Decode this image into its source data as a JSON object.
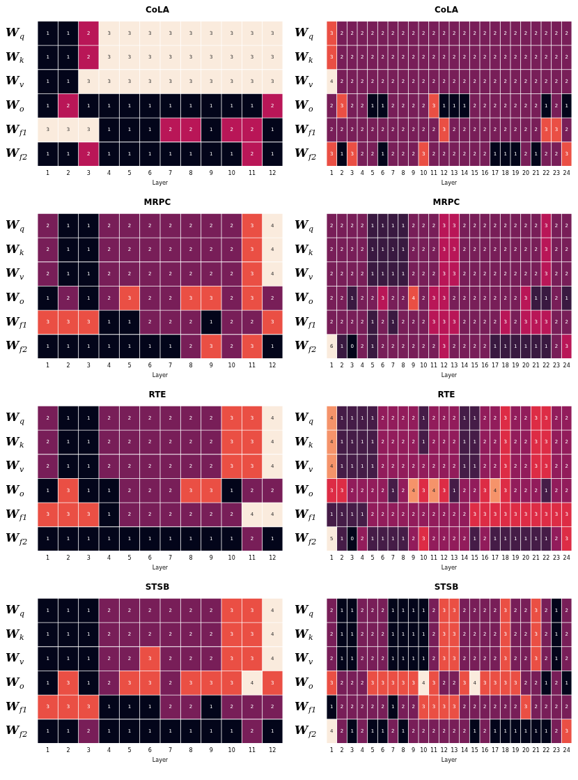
{
  "chart_data": [
    {
      "type": "heatmap",
      "title": "CoLA",
      "xlabel": "Layer",
      "data_labels": true,
      "categories": [
        "1",
        "2",
        "3",
        "4",
        "5",
        "6",
        "7",
        "8",
        "9",
        "10",
        "11",
        "12"
      ],
      "y_categories": [
        "W$_{q}$",
        "W$_{k}$",
        "W$_{v}$",
        "W$_{o}$",
        "W$_{f1}$",
        "W$_{f2}$"
      ],
      "cells": [
        [
          1,
          1,
          2,
          3,
          3,
          3,
          3,
          3,
          3,
          3,
          3,
          3
        ],
        [
          1,
          1,
          2,
          3,
          3,
          3,
          3,
          3,
          3,
          3,
          3,
          3
        ],
        [
          1,
          1,
          3,
          3,
          3,
          3,
          3,
          3,
          3,
          3,
          3,
          3
        ],
        [
          1,
          2,
          1,
          1,
          1,
          1,
          1,
          1,
          1,
          1,
          1,
          2
        ],
        [
          3,
          3,
          3,
          1,
          1,
          1,
          2,
          2,
          1,
          2,
          2,
          1
        ],
        [
          1,
          1,
          2,
          1,
          1,
          1,
          1,
          1,
          1,
          1,
          2,
          1
        ]
      ]
    },
    {
      "type": "heatmap",
      "title": "CoLA",
      "xlabel": "Layer",
      "data_labels": true,
      "categories": [
        "1",
        "2",
        "3",
        "4",
        "5",
        "6",
        "7",
        "8",
        "9",
        "10",
        "11",
        "12",
        "13",
        "14",
        "15",
        "16",
        "17",
        "18",
        "19",
        "20",
        "21",
        "22",
        "23",
        "24"
      ],
      "y_categories": [
        "W$_{q}$",
        "W$_{k}$",
        "W$_{v}$",
        "W$_{o}$",
        "W$_{f1}$",
        "W$_{f2}$"
      ],
      "cells": [
        [
          3,
          2,
          2,
          2,
          2,
          2,
          2,
          2,
          2,
          2,
          2,
          2,
          2,
          2,
          2,
          2,
          2,
          2,
          2,
          2,
          2,
          2,
          2,
          2
        ],
        [
          3,
          2,
          2,
          2,
          2,
          2,
          2,
          2,
          2,
          2,
          2,
          2,
          2,
          2,
          2,
          2,
          2,
          2,
          2,
          2,
          2,
          2,
          2,
          2
        ],
        [
          4,
          2,
          2,
          2,
          2,
          2,
          2,
          2,
          2,
          2,
          2,
          2,
          2,
          2,
          2,
          2,
          2,
          2,
          2,
          2,
          2,
          2,
          2,
          2
        ],
        [
          2,
          3,
          2,
          2,
          1,
          1,
          2,
          2,
          2,
          2,
          3,
          1,
          1,
          1,
          2,
          2,
          2,
          2,
          2,
          2,
          2,
          1,
          2,
          1
        ],
        [
          2,
          2,
          2,
          2,
          2,
          2,
          2,
          2,
          2,
          2,
          2,
          3,
          2,
          2,
          2,
          2,
          2,
          2,
          2,
          2,
          2,
          3,
          3,
          2
        ],
        [
          3,
          1,
          3,
          2,
          2,
          1,
          2,
          2,
          2,
          3,
          2,
          2,
          2,
          2,
          2,
          2,
          1,
          1,
          1,
          2,
          1,
          2,
          2,
          3
        ]
      ]
    },
    {
      "type": "heatmap",
      "title": "MRPC",
      "xlabel": "Layer",
      "data_labels": true,
      "categories": [
        "1",
        "2",
        "3",
        "4",
        "5",
        "6",
        "7",
        "8",
        "9",
        "10",
        "11",
        "12"
      ],
      "y_categories": [
        "W$_{q}$",
        "W$_{k}$",
        "W$_{v}$",
        "W$_{o}$",
        "W$_{f1}$",
        "W$_{f2}$"
      ],
      "cells": [
        [
          2,
          1,
          1,
          2,
          2,
          2,
          2,
          2,
          2,
          2,
          3,
          4
        ],
        [
          2,
          1,
          1,
          2,
          2,
          2,
          2,
          2,
          2,
          2,
          3,
          4
        ],
        [
          2,
          1,
          1,
          2,
          2,
          2,
          2,
          2,
          2,
          2,
          3,
          4
        ],
        [
          1,
          2,
          1,
          2,
          3,
          2,
          2,
          3,
          3,
          2,
          3,
          2
        ],
        [
          3,
          3,
          3,
          1,
          1,
          2,
          2,
          2,
          1,
          2,
          2,
          3
        ],
        [
          1,
          1,
          1,
          1,
          1,
          1,
          1,
          2,
          3,
          2,
          3,
          1
        ]
      ]
    },
    {
      "type": "heatmap",
      "title": "MRPC",
      "xlabel": "Layer",
      "data_labels": true,
      "categories": [
        "1",
        "2",
        "3",
        "4",
        "5",
        "6",
        "7",
        "8",
        "9",
        "10",
        "11",
        "12",
        "13",
        "14",
        "15",
        "16",
        "17",
        "18",
        "19",
        "20",
        "21",
        "22",
        "23",
        "24"
      ],
      "y_categories": [
        "W$_{q}$",
        "W$_{k}$",
        "W$_{v}$",
        "W$_{o}$",
        "W$_{f1}$",
        "W$_{f2}$"
      ],
      "cells": [
        [
          2,
          2,
          2,
          2,
          1,
          1,
          1,
          1,
          2,
          2,
          2,
          3,
          3,
          2,
          2,
          2,
          2,
          2,
          2,
          2,
          2,
          3,
          2,
          2
        ],
        [
          2,
          2,
          2,
          2,
          1,
          1,
          1,
          1,
          2,
          2,
          2,
          3,
          3,
          2,
          2,
          2,
          2,
          2,
          2,
          2,
          2,
          3,
          2,
          2
        ],
        [
          2,
          2,
          2,
          2,
          1,
          1,
          1,
          1,
          2,
          2,
          2,
          3,
          3,
          2,
          2,
          2,
          2,
          2,
          2,
          2,
          2,
          3,
          2,
          2
        ],
        [
          2,
          2,
          1,
          2,
          2,
          3,
          2,
          2,
          4,
          2,
          3,
          3,
          2,
          2,
          2,
          2,
          2,
          2,
          2,
          3,
          1,
          1,
          2,
          1
        ],
        [
          2,
          2,
          2,
          2,
          1,
          2,
          1,
          2,
          2,
          2,
          3,
          3,
          3,
          2,
          2,
          2,
          2,
          3,
          2,
          3,
          3,
          3,
          2,
          2
        ],
        [
          6,
          1,
          0,
          2,
          1,
          2,
          2,
          2,
          2,
          2,
          2,
          3,
          2,
          2,
          2,
          2,
          1,
          1,
          1,
          1,
          1,
          1,
          2,
          3
        ]
      ]
    },
    {
      "type": "heatmap",
      "title": "RTE",
      "xlabel": "Layer",
      "data_labels": true,
      "categories": [
        "1",
        "2",
        "3",
        "4",
        "5",
        "6",
        "7",
        "8",
        "9",
        "10",
        "11",
        "12"
      ],
      "y_categories": [
        "W$_{q}$",
        "W$_{k}$",
        "W$_{v}$",
        "W$_{o}$",
        "W$_{f1}$",
        "W$_{f2}$"
      ],
      "cells": [
        [
          2,
          1,
          1,
          2,
          2,
          2,
          2,
          2,
          2,
          3,
          3,
          4
        ],
        [
          2,
          1,
          1,
          2,
          2,
          2,
          2,
          2,
          2,
          3,
          3,
          4
        ],
        [
          2,
          1,
          1,
          2,
          2,
          2,
          2,
          2,
          2,
          3,
          3,
          4
        ],
        [
          1,
          3,
          1,
          1,
          2,
          2,
          2,
          3,
          3,
          1,
          2,
          2
        ],
        [
          3,
          3,
          3,
          1,
          2,
          2,
          2,
          2,
          2,
          2,
          4,
          4
        ],
        [
          1,
          1,
          1,
          1,
          1,
          1,
          1,
          1,
          1,
          1,
          2,
          1
        ]
      ]
    },
    {
      "type": "heatmap",
      "title": "RTE",
      "xlabel": "Layer",
      "data_labels": true,
      "categories": [
        "1",
        "2",
        "3",
        "4",
        "5",
        "6",
        "7",
        "8",
        "9",
        "10",
        "11",
        "12",
        "13",
        "14",
        "15",
        "16",
        "17",
        "18",
        "19",
        "20",
        "21",
        "22",
        "23",
        "24"
      ],
      "y_categories": [
        "W$_{q}$",
        "W$_{k}$",
        "W$_{v}$",
        "W$_{o}$",
        "W$_{f1}$",
        "W$_{f2}$"
      ],
      "cells": [
        [
          4,
          1,
          1,
          1,
          1,
          2,
          2,
          2,
          2,
          1,
          2,
          2,
          2,
          1,
          1,
          2,
          2,
          3,
          2,
          2,
          3,
          3,
          2,
          2
        ],
        [
          4,
          1,
          1,
          1,
          1,
          2,
          2,
          2,
          2,
          1,
          2,
          2,
          2,
          1,
          1,
          2,
          2,
          3,
          2,
          2,
          3,
          3,
          2,
          2
        ],
        [
          4,
          1,
          1,
          1,
          1,
          2,
          2,
          2,
          2,
          2,
          2,
          2,
          2,
          1,
          1,
          2,
          2,
          3,
          2,
          2,
          3,
          3,
          2,
          2
        ],
        [
          3,
          3,
          2,
          2,
          2,
          2,
          1,
          2,
          4,
          3,
          4,
          3,
          1,
          2,
          2,
          3,
          4,
          3,
          2,
          2,
          2,
          1,
          2,
          2
        ],
        [
          1,
          1,
          1,
          1,
          2,
          2,
          2,
          2,
          2,
          2,
          2,
          2,
          2,
          2,
          3,
          3,
          3,
          3,
          3,
          3,
          3,
          3,
          3,
          3
        ],
        [
          5,
          1,
          0,
          2,
          1,
          1,
          1,
          1,
          2,
          3,
          2,
          2,
          2,
          2,
          1,
          2,
          1,
          1,
          1,
          1,
          1,
          1,
          2,
          3
        ]
      ]
    },
    {
      "type": "heatmap",
      "title": "STSB",
      "xlabel": "Layer",
      "data_labels": true,
      "categories": [
        "1",
        "2",
        "3",
        "4",
        "5",
        "6",
        "7",
        "8",
        "9",
        "10",
        "11",
        "12"
      ],
      "y_categories": [
        "W$_{q}$",
        "W$_{k}$",
        "W$_{v}$",
        "W$_{o}$",
        "W$_{f1}$",
        "W$_{f2}$"
      ],
      "cells": [
        [
          1,
          1,
          1,
          2,
          2,
          2,
          2,
          2,
          2,
          3,
          3,
          4
        ],
        [
          1,
          1,
          1,
          2,
          2,
          2,
          2,
          2,
          2,
          3,
          3,
          4
        ],
        [
          1,
          1,
          1,
          2,
          2,
          3,
          2,
          2,
          2,
          3,
          3,
          4
        ],
        [
          1,
          3,
          1,
          2,
          3,
          3,
          2,
          3,
          3,
          3,
          4,
          3
        ],
        [
          3,
          3,
          3,
          1,
          1,
          1,
          2,
          2,
          1,
          2,
          2,
          2
        ],
        [
          1,
          1,
          2,
          1,
          1,
          1,
          1,
          1,
          1,
          1,
          2,
          1
        ]
      ]
    },
    {
      "type": "heatmap",
      "title": "STSB",
      "xlabel": "Layer",
      "data_labels": true,
      "categories": [
        "1",
        "2",
        "3",
        "4",
        "5",
        "6",
        "7",
        "8",
        "9",
        "10",
        "11",
        "12",
        "13",
        "14",
        "15",
        "16",
        "17",
        "18",
        "19",
        "20",
        "21",
        "22",
        "23",
        "24"
      ],
      "y_categories": [
        "W$_{q}$",
        "W$_{k}$",
        "W$_{v}$",
        "W$_{o}$",
        "W$_{f1}$",
        "W$_{f2}$"
      ],
      "cells": [
        [
          2,
          1,
          1,
          2,
          2,
          2,
          1,
          1,
          1,
          1,
          2,
          3,
          3,
          2,
          2,
          2,
          2,
          3,
          2,
          2,
          3,
          2,
          1,
          2
        ],
        [
          2,
          1,
          1,
          2,
          2,
          2,
          1,
          1,
          1,
          1,
          2,
          3,
          3,
          2,
          2,
          2,
          2,
          3,
          2,
          2,
          3,
          2,
          1,
          2
        ],
        [
          2,
          1,
          1,
          2,
          2,
          2,
          1,
          1,
          1,
          1,
          2,
          3,
          3,
          2,
          2,
          2,
          2,
          3,
          2,
          2,
          3,
          2,
          1,
          2
        ],
        [
          3,
          2,
          2,
          2,
          3,
          3,
          3,
          3,
          3,
          4,
          3,
          2,
          2,
          3,
          4,
          3,
          3,
          3,
          3,
          2,
          2,
          1,
          2,
          1
        ],
        [
          1,
          2,
          2,
          2,
          2,
          2,
          1,
          2,
          2,
          3,
          3,
          3,
          3,
          2,
          2,
          2,
          2,
          2,
          2,
          3,
          2,
          2,
          2,
          2
        ],
        [
          4,
          2,
          1,
          2,
          1,
          1,
          2,
          1,
          2,
          2,
          2,
          2,
          2,
          2,
          1,
          2,
          1,
          1,
          1,
          1,
          1,
          1,
          2,
          3
        ]
      ]
    }
  ]
}
